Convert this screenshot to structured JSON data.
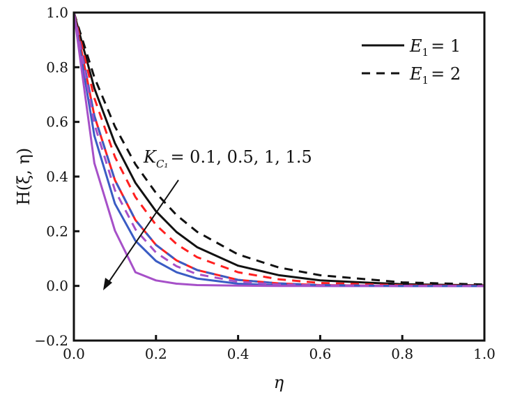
{
  "chart_data": {
    "type": "line",
    "title": "",
    "xlabel": "η",
    "ylabel": "H(ξ, η)",
    "xlim": [
      0,
      1
    ],
    "ylim": [
      -0.2,
      1
    ],
    "xticks": [
      "0.0",
      "0.2",
      "0.4",
      "0.6",
      "0.8",
      "1.0"
    ],
    "yticks": [
      "−0.2",
      "0.0",
      "0.2",
      "0.4",
      "0.6",
      "0.8",
      "1.0"
    ],
    "xtick_values": [
      0,
      0.2,
      0.4,
      0.6,
      0.8,
      1.0
    ],
    "ytick_values": [
      -0.2,
      0,
      0.2,
      0.4,
      0.6,
      0.8,
      1.0
    ],
    "grid": false,
    "legend_position": "top-right",
    "legend": [
      {
        "var": "E",
        "sub": "1",
        "text": "= 1",
        "style": "solid"
      },
      {
        "var": "E",
        "sub": "1",
        "text": "= 2",
        "style": "dashed"
      }
    ],
    "annotation": {
      "var": "K",
      "sub": "C₁",
      "text": "= 0.1, 0.5, 1, 1.5",
      "arrow": "decreasing direction"
    },
    "x": [
      0,
      0.05,
      0.1,
      0.15,
      0.2,
      0.25,
      0.3,
      0.4,
      0.5,
      0.6,
      0.8,
      1.0
    ],
    "series": [
      {
        "name": "E1=1, KC1=0.1",
        "color": "#111111",
        "style": "solid",
        "values": [
          1,
          0.723,
          0.522,
          0.377,
          0.273,
          0.197,
          0.142,
          0.074,
          0.039,
          0.02,
          0.006,
          0.002
        ]
      },
      {
        "name": "E1=1, KC1=0.5",
        "color": "#ff2020",
        "style": "solid",
        "values": [
          1,
          0.622,
          0.387,
          0.241,
          0.15,
          0.093,
          0.058,
          0.022,
          0.009,
          0.003,
          0,
          0
        ]
      },
      {
        "name": "E1=1, KC1=1",
        "color": "#3a5cc4",
        "style": "solid",
        "values": [
          1,
          0.549,
          0.301,
          0.165,
          0.091,
          0.05,
          0.027,
          0.008,
          0.002,
          0,
          0,
          0
        ]
      },
      {
        "name": "E1=1, KC1=1.5",
        "color": "#a650c8",
        "style": "solid",
        "values": [
          1,
          0.449,
          0.202,
          0.05,
          0.02,
          0.008,
          0.003,
          0.001,
          0,
          0,
          0,
          0
        ]
      },
      {
        "name": "E1=2, KC1=0.1",
        "color": "#111111",
        "style": "dashed",
        "values": [
          1,
          0.763,
          0.583,
          0.445,
          0.34,
          0.259,
          0.198,
          0.115,
          0.067,
          0.039,
          0.013,
          0.005
        ]
      },
      {
        "name": "E1=2, KC1=0.5",
        "color": "#ff2020",
        "style": "dashed",
        "values": [
          1,
          0.687,
          0.472,
          0.325,
          0.223,
          0.153,
          0.105,
          0.05,
          0.024,
          0.011,
          0.002,
          0.001
        ]
      },
      {
        "name": "E1=2, KC1=1",
        "color": "#3a5cc4",
        "style": "dashed",
        "values": [
          1,
          0.622,
          0.387,
          0.241,
          0.15,
          0.093,
          0.058,
          0.022,
          0.009,
          0.003,
          0,
          0
        ]
      },
      {
        "name": "E1=2, KC1=1.5",
        "color": "#a650c8",
        "style": "dashed",
        "values": [
          1,
          0.592,
          0.35,
          0.207,
          0.122,
          0.072,
          0.043,
          0.015,
          0.005,
          0.002,
          0,
          0
        ]
      }
    ]
  }
}
